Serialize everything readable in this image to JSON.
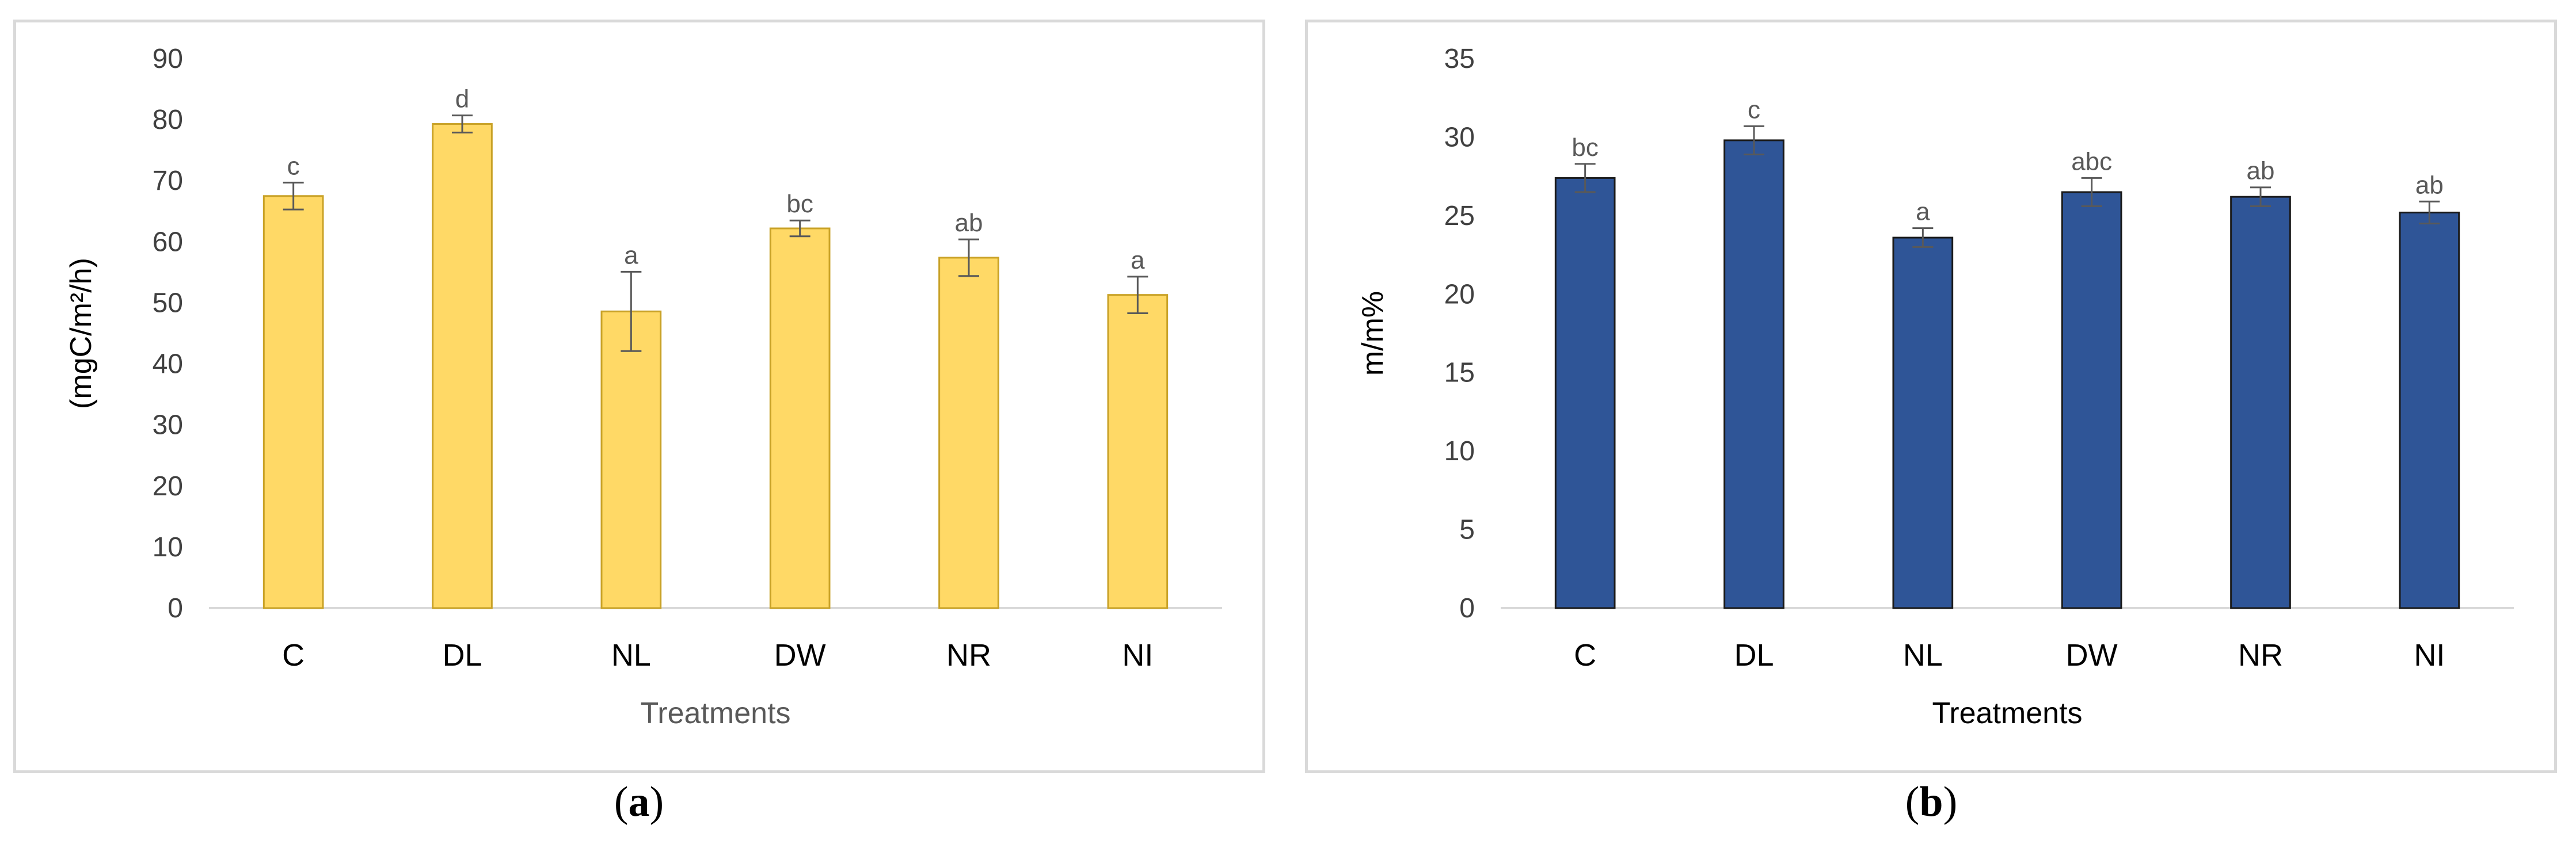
{
  "chart_data": [
    {
      "type": "bar",
      "panel_label": "a",
      "categories": [
        "C",
        "DL",
        "NL",
        "DW",
        "NR",
        "NI"
      ],
      "values": [
        67.5,
        79.3,
        48.6,
        62.2,
        57.4,
        51.3
      ],
      "errors": [
        2.2,
        1.4,
        6.5,
        1.3,
        3.0,
        3.0
      ],
      "significance": [
        "c",
        "d",
        "a",
        "bc",
        "ab",
        "a"
      ],
      "xlabel": "Treatments",
      "ylabel": "(mgC/m²/h)",
      "ylim": [
        0,
        90
      ],
      "yticks": [
        0,
        10,
        20,
        30,
        40,
        50,
        60,
        70,
        80,
        90
      ],
      "bar_color": "#FFD966",
      "bar_edge": "#C9A227",
      "grid": false
    },
    {
      "type": "bar",
      "panel_label": "b",
      "categories": [
        "C",
        "DL",
        "NL",
        "DW",
        "NR",
        "NI"
      ],
      "values": [
        27.4,
        29.8,
        23.6,
        26.5,
        26.2,
        25.2
      ],
      "errors": [
        0.9,
        0.9,
        0.6,
        0.9,
        0.6,
        0.7
      ],
      "significance": [
        "bc",
        "c",
        "a",
        "abc",
        "ab",
        "ab"
      ],
      "xlabel": "Treatments",
      "ylabel": "m/m%",
      "ylim": [
        0,
        35
      ],
      "yticks": [
        0,
        5,
        10,
        15,
        20,
        25,
        30,
        35
      ],
      "bar_color": "#2F5597",
      "bar_edge": "#1a1a1a",
      "grid": false
    }
  ]
}
